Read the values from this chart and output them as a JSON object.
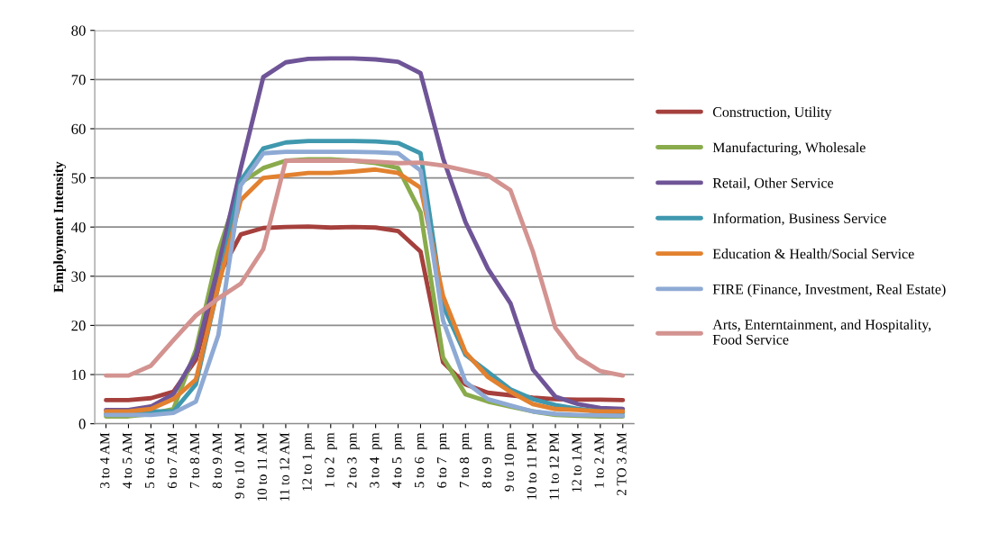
{
  "chart_data": {
    "type": "line",
    "ylabel": "Employment Intensity",
    "categories": [
      "3 to 4 AM",
      "4 to 5 AM",
      "5 to 6 AM",
      "6 to 7 AM",
      "7 to 8 AM",
      "8 to 9 AM",
      "9 to 10  AM",
      "10 to 11 AM",
      "11 to 12 AM",
      "12 to 1 pm",
      "1 to 2  pm",
      "2 to 3  pm",
      "3 to 4  pm",
      "4 to 5  pm",
      "5 to 6  pm",
      "6 to 7  pm",
      "7 to 8  pm",
      "8 to 9  pm",
      "9 to 10 pm",
      "10 to 11 PM",
      "11 to 12 PM",
      "12 to 1AM",
      "1 to 2 AM",
      "2 TO 3 AM"
    ],
    "series": [
      {
        "name": "Construction, Utility",
        "color": "#a5403d",
        "values": [
          4.8,
          4.8,
          5.2,
          6.5,
          13,
          30,
          38.5,
          39.8,
          40,
          40.1,
          39.9,
          40,
          39.9,
          39.2,
          35,
          12.5,
          8,
          6.3,
          5.8,
          5.3,
          5,
          4.9,
          4.9,
          4.8
        ]
      },
      {
        "name": "Manufacturing, Wholesale",
        "color": "#8aab4c",
        "values": [
          1.5,
          1.5,
          2,
          3,
          15,
          35,
          49,
          52,
          53.5,
          53.8,
          53.8,
          53.5,
          53,
          52,
          43,
          13.5,
          6,
          4.5,
          3.5,
          2.5,
          1.8,
          1.6,
          1.5,
          1.5
        ]
      },
      {
        "name": "Retail, Other Service",
        "color": "#6f5597",
        "values": [
          2.8,
          2.8,
          3.5,
          6,
          14,
          32,
          52,
          70.5,
          73.5,
          74.2,
          74.3,
          74.3,
          74.1,
          73.6,
          71.3,
          54,
          41,
          31.5,
          24.5,
          11,
          5.5,
          4,
          3.2,
          3
        ]
      },
      {
        "name": "Information, Business Service",
        "color": "#3f98ae",
        "values": [
          2,
          2,
          2.5,
          2.5,
          8,
          28,
          49.5,
          56,
          57.2,
          57.5,
          57.5,
          57.5,
          57.4,
          57.1,
          55,
          24,
          14,
          10.5,
          7,
          5,
          3.8,
          3,
          2.5,
          2.3
        ]
      },
      {
        "name": "Education & Health/Social Service",
        "color": "#e2812f",
        "values": [
          2.5,
          2.5,
          3,
          5,
          9,
          28,
          45.5,
          50,
          50.5,
          51,
          51,
          51.3,
          51.7,
          51,
          48,
          26,
          14.5,
          9.5,
          6.5,
          4,
          3,
          2.8,
          2.5,
          2.5
        ]
      },
      {
        "name": "FIRE (Finance, Investment, Real Estate)",
        "color": "#8eaad4",
        "values": [
          1.8,
          1.8,
          1.8,
          2.2,
          4.5,
          18,
          48.5,
          55,
          55.3,
          55.3,
          55.3,
          55.3,
          55.2,
          55,
          51.5,
          21,
          8.5,
          5,
          3.7,
          2.5,
          2,
          1.8,
          1.7,
          1.6
        ]
      },
      {
        "name": "Arts, Enterntainment, and Hospitality,\nFood Service",
        "color": "#d39390",
        "values": [
          9.8,
          9.8,
          11.8,
          17,
          22,
          25.5,
          28.5,
          35.5,
          53.5,
          53.5,
          53.5,
          53.5,
          53.3,
          53,
          53.1,
          52.5,
          51.5,
          50.5,
          47.5,
          35,
          19.5,
          13.5,
          10.7,
          9.8
        ]
      }
    ],
    "ylim": [
      0,
      80
    ],
    "yticks": [
      0,
      10,
      20,
      30,
      40,
      50,
      60,
      70,
      80
    ],
    "grid": "y",
    "legend": "right",
    "marker": "none",
    "line_style": "solid"
  }
}
